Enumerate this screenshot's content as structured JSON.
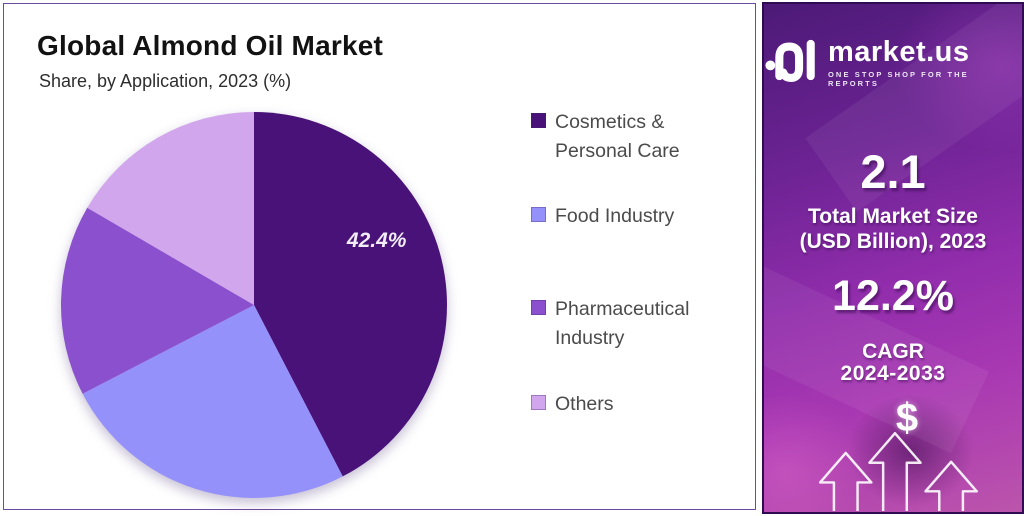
{
  "chart_panel": {
    "title": "Global Almond Oil Market",
    "subtitle": "Share, by Application, 2023 (%)"
  },
  "chart_data": {
    "type": "pie",
    "title": "Global Almond Oil Market",
    "subtitle": "Share, by Application, 2023 (%)",
    "unit": "%",
    "direction": "clockwise",
    "start_angle_deg": 0,
    "legend_position": "right",
    "series": [
      {
        "name": "Cosmetics & Personal Care",
        "value": 42.4,
        "color": "#481279",
        "labeled": true
      },
      {
        "name": "Food Industry",
        "value": 25.0,
        "color": "#9591FA",
        "labeled": false
      },
      {
        "name": "Pharmaceutical Industry",
        "value": 16.0,
        "color": "#8B50CE",
        "labeled": false
      },
      {
        "name": "Others",
        "value": 16.6,
        "color": "#D1A6EC",
        "labeled": false
      }
    ],
    "slice_label": {
      "text": "42.4%",
      "angle_deg": 62,
      "radius_frac": 0.72
    }
  },
  "sidebar": {
    "brand": {
      "name": "market.us",
      "tagline": "ONE STOP SHOP FOR THE REPORTS",
      "logo_icon": "market-us-logo"
    },
    "stat_market_size": {
      "value": "2.1",
      "label_line1": "Total Market Size",
      "label_line2": "(USD Billion), 2023"
    },
    "stat_cagr": {
      "value": "12.2%",
      "label_line1": "CAGR",
      "label_line2": "2024-2033"
    },
    "dollar_symbol": "$",
    "icons": [
      "dollar-icon",
      "growth-arrows-icon"
    ]
  },
  "colors": {
    "card_border": "#6b4b9b",
    "sidebar_border": "#2f0c52",
    "sidebar_gradient_top": "#4c1a77",
    "sidebar_gradient_bottom": "#bb55ab",
    "legend_text": "#4b4b4b",
    "title_text": "#121212",
    "slice_label_text": "#f2edf8"
  }
}
